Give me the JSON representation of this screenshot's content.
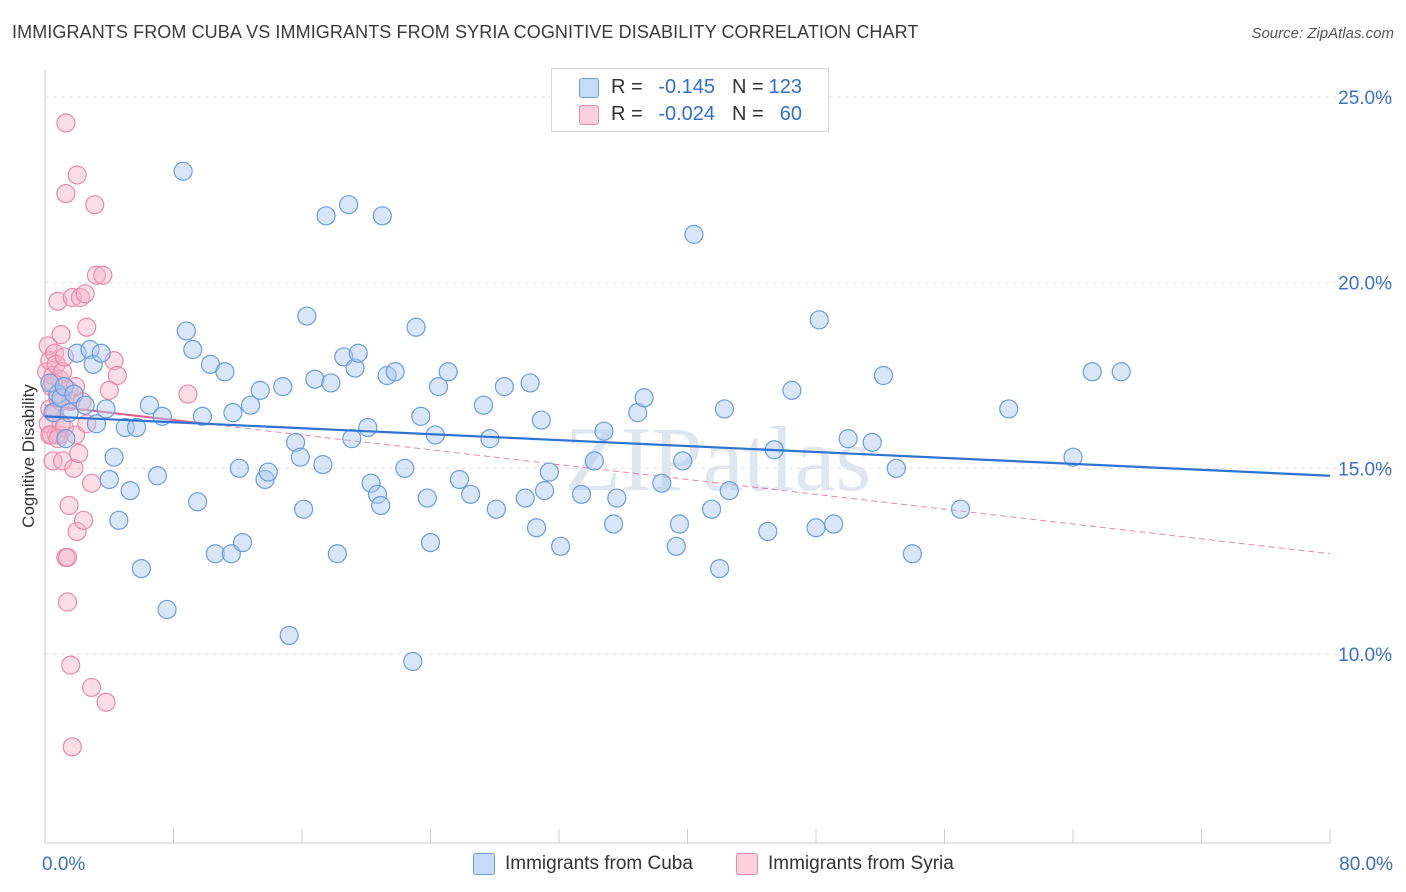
{
  "title": "IMMIGRANTS FROM CUBA VS IMMIGRANTS FROM SYRIA COGNITIVE DISABILITY CORRELATION CHART",
  "source": "Source: ZipAtlas.com",
  "watermark": "ZIPatlas",
  "legend": {
    "rows": [
      {
        "r_label": "R =",
        "r_value": "-0.145",
        "n_label": "N =",
        "n_value": "123"
      },
      {
        "r_label": "R =",
        "r_value": "-0.024",
        "n_label": "N =",
        "n_value": "60"
      }
    ]
  },
  "bottom_legend": [
    "Immigrants from Cuba",
    "Immigrants from Syria"
  ],
  "chart_data": {
    "type": "scatter",
    "title": "IMMIGRANTS FROM CUBA VS IMMIGRANTS FROM SYRIA COGNITIVE DISABILITY CORRELATION CHART",
    "xlabel": "",
    "ylabel": "Cognitive Disability",
    "xlim": [
      0,
      80
    ],
    "ylim": [
      5,
      26
    ],
    "x_tick_labels": [
      "0.0%",
      "80.0%"
    ],
    "y_ticks": [
      10,
      15,
      20,
      25
    ],
    "y_tick_labels": [
      "10.0%",
      "15.0%",
      "20.0%",
      "25.0%"
    ],
    "grid": true,
    "legend_position": "top-center",
    "colors": {
      "cuba_fill": "#a9c8f0",
      "cuba_stroke": "#6b9de0",
      "cuba_line": "#2f73d0",
      "syria_fill": "#f6b3c8",
      "syria_stroke": "#ea8aa8",
      "syria_line": "#e0608a",
      "tick_label": "#3a70c8",
      "grid": "#e2e2e2",
      "axis": "#cccccc"
    },
    "series": [
      {
        "name": "Immigrants from Cuba",
        "trend": {
          "x": [
            0,
            80
          ],
          "y": [
            16.4,
            14.8
          ]
        },
        "points": [
          [
            0.3,
            17.3
          ],
          [
            0.5,
            16.5
          ],
          [
            0.8,
            17.0
          ],
          [
            1.0,
            16.9
          ],
          [
            1.2,
            17.2
          ],
          [
            1.3,
            15.8
          ],
          [
            1.5,
            16.5
          ],
          [
            1.8,
            17.0
          ],
          [
            2.0,
            18.1
          ],
          [
            2.5,
            16.7
          ],
          [
            2.8,
            18.2
          ],
          [
            3.0,
            17.8
          ],
          [
            3.2,
            16.2
          ],
          [
            3.5,
            18.1
          ],
          [
            3.8,
            16.6
          ],
          [
            4.0,
            14.7
          ],
          [
            4.3,
            15.3
          ],
          [
            4.6,
            13.6
          ],
          [
            5.0,
            16.1
          ],
          [
            5.3,
            14.4
          ],
          [
            5.7,
            16.1
          ],
          [
            6.0,
            12.3
          ],
          [
            6.5,
            16.7
          ],
          [
            7.0,
            14.8
          ],
          [
            7.3,
            16.4
          ],
          [
            7.6,
            11.2
          ],
          [
            8.6,
            23.0
          ],
          [
            8.8,
            18.7
          ],
          [
            9.2,
            18.2
          ],
          [
            9.5,
            14.1
          ],
          [
            9.8,
            16.4
          ],
          [
            10.3,
            17.8
          ],
          [
            10.6,
            12.7
          ],
          [
            11.2,
            17.6
          ],
          [
            11.6,
            12.7
          ],
          [
            11.7,
            16.5
          ],
          [
            12.1,
            15.0
          ],
          [
            12.3,
            13.0
          ],
          [
            12.8,
            16.7
          ],
          [
            13.4,
            17.1
          ],
          [
            13.7,
            14.7
          ],
          [
            13.9,
            14.9
          ],
          [
            14.8,
            17.2
          ],
          [
            15.2,
            10.5
          ],
          [
            15.6,
            15.7
          ],
          [
            15.9,
            15.3
          ],
          [
            16.1,
            13.9
          ],
          [
            16.3,
            19.1
          ],
          [
            16.8,
            17.4
          ],
          [
            17.3,
            15.1
          ],
          [
            17.5,
            21.8
          ],
          [
            17.8,
            17.3
          ],
          [
            18.2,
            12.7
          ],
          [
            18.6,
            18.0
          ],
          [
            18.9,
            22.1
          ],
          [
            19.1,
            15.8
          ],
          [
            19.3,
            17.7
          ],
          [
            19.5,
            18.1
          ],
          [
            20.1,
            16.1
          ],
          [
            20.3,
            14.6
          ],
          [
            20.7,
            14.3
          ],
          [
            20.9,
            14.0
          ],
          [
            21.0,
            21.8
          ],
          [
            21.3,
            17.5
          ],
          [
            21.8,
            17.6
          ],
          [
            22.4,
            15.0
          ],
          [
            22.9,
            9.8
          ],
          [
            23.1,
            18.8
          ],
          [
            23.4,
            16.4
          ],
          [
            23.8,
            14.2
          ],
          [
            24.0,
            13.0
          ],
          [
            24.3,
            15.9
          ],
          [
            24.5,
            17.2
          ],
          [
            25.1,
            17.6
          ],
          [
            25.8,
            14.7
          ],
          [
            26.5,
            14.3
          ],
          [
            27.3,
            16.7
          ],
          [
            27.7,
            15.8
          ],
          [
            28.1,
            13.9
          ],
          [
            28.6,
            17.2
          ],
          [
            29.9,
            14.2
          ],
          [
            30.2,
            17.3
          ],
          [
            30.6,
            13.4
          ],
          [
            30.9,
            16.3
          ],
          [
            31.1,
            14.4
          ],
          [
            31.4,
            14.9
          ],
          [
            32.1,
            12.9
          ],
          [
            33.4,
            14.3
          ],
          [
            34.2,
            15.2
          ],
          [
            34.8,
            16.0
          ],
          [
            35.4,
            13.5
          ],
          [
            35.6,
            14.2
          ],
          [
            36.9,
            16.5
          ],
          [
            37.3,
            16.9
          ],
          [
            38.4,
            14.6
          ],
          [
            39.3,
            12.9
          ],
          [
            39.5,
            13.5
          ],
          [
            39.7,
            15.2
          ],
          [
            40.4,
            21.3
          ],
          [
            41.5,
            13.9
          ],
          [
            42.0,
            12.3
          ],
          [
            42.3,
            16.6
          ],
          [
            42.6,
            14.4
          ],
          [
            45.0,
            13.3
          ],
          [
            45.4,
            15.5
          ],
          [
            46.5,
            17.1
          ],
          [
            48.0,
            13.4
          ],
          [
            48.2,
            19.0
          ],
          [
            49.1,
            13.5
          ],
          [
            50.0,
            15.8
          ],
          [
            51.5,
            15.7
          ],
          [
            52.2,
            17.5
          ],
          [
            53.0,
            15.0
          ],
          [
            54.0,
            12.7
          ],
          [
            57.0,
            13.9
          ],
          [
            60.0,
            16.6
          ],
          [
            64.0,
            15.3
          ],
          [
            65.2,
            17.6
          ],
          [
            67.0,
            17.6
          ]
        ]
      },
      {
        "name": "Immigrants from Syria",
        "trend": {
          "x": [
            0,
            80
          ],
          "y": [
            16.7,
            12.7
          ]
        },
        "points": [
          [
            0.1,
            17.6
          ],
          [
            0.2,
            18.3
          ],
          [
            0.2,
            16.2
          ],
          [
            0.3,
            17.9
          ],
          [
            0.3,
            16.6
          ],
          [
            0.4,
            17.2
          ],
          [
            0.4,
            15.9
          ],
          [
            0.5,
            17.5
          ],
          [
            0.5,
            15.2
          ],
          [
            0.6,
            18.1
          ],
          [
            0.6,
            16.5
          ],
          [
            0.7,
            15.9
          ],
          [
            0.7,
            17.8
          ],
          [
            0.8,
            19.5
          ],
          [
            0.8,
            16.9
          ],
          [
            0.9,
            17.4
          ],
          [
            0.9,
            15.9
          ],
          [
            1.0,
            18.6
          ],
          [
            1.0,
            16.2
          ],
          [
            1.1,
            15.2
          ],
          [
            1.1,
            17.6
          ],
          [
            1.2,
            16.1
          ],
          [
            1.2,
            18.0
          ],
          [
            1.3,
            12.6
          ],
          [
            1.3,
            22.4
          ],
          [
            1.3,
            24.3
          ],
          [
            1.4,
            12.6
          ],
          [
            1.4,
            11.4
          ],
          [
            1.5,
            17.1
          ],
          [
            1.5,
            14.0
          ],
          [
            1.6,
            9.7
          ],
          [
            1.6,
            16.8
          ],
          [
            1.7,
            19.6
          ],
          [
            1.8,
            15.0
          ],
          [
            1.9,
            15.9
          ],
          [
            2.0,
            13.3
          ],
          [
            2.0,
            22.9
          ],
          [
            2.1,
            15.4
          ],
          [
            2.2,
            19.6
          ],
          [
            2.3,
            16.8
          ],
          [
            2.4,
            13.6
          ],
          [
            2.5,
            19.7
          ],
          [
            2.6,
            16.2
          ],
          [
            2.9,
            14.6
          ],
          [
            2.9,
            9.1
          ],
          [
            3.1,
            22.1
          ],
          [
            3.2,
            20.2
          ],
          [
            3.6,
            20.2
          ],
          [
            3.8,
            8.7
          ],
          [
            4.0,
            17.1
          ],
          [
            4.3,
            17.9
          ],
          [
            4.5,
            17.5
          ],
          [
            1.7,
            7.5
          ],
          [
            0.3,
            15.9
          ],
          [
            0.5,
            17.3
          ],
          [
            0.8,
            15.8
          ],
          [
            1.0,
            16.8
          ],
          [
            1.9,
            17.2
          ],
          [
            2.6,
            18.8
          ],
          [
            8.9,
            17.0
          ]
        ]
      }
    ]
  }
}
